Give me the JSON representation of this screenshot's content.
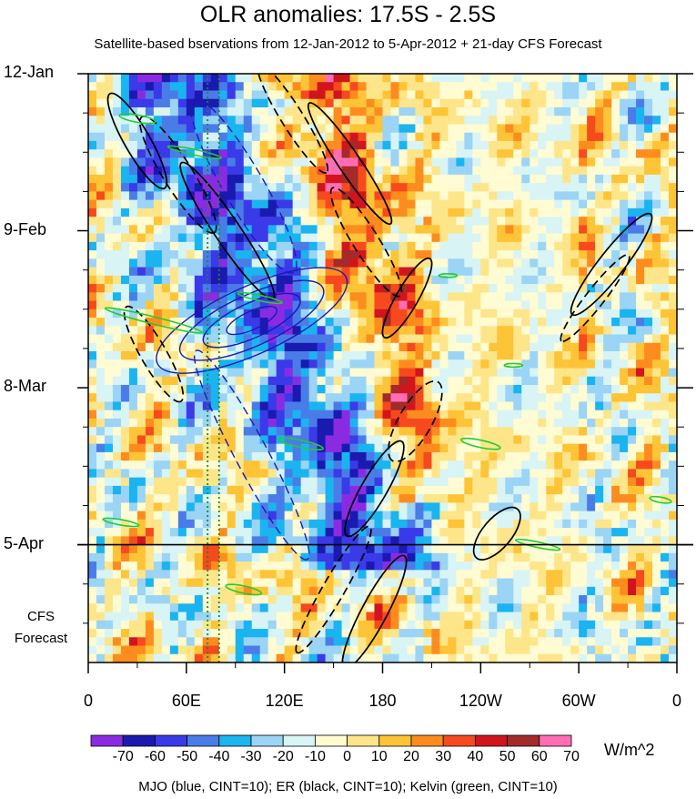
{
  "chart_data": {
    "type": "heatmap",
    "title": "OLR anomalies: 17.5S - 2.5S",
    "subtitle": "Satellite-based bservations from 12-Jan-2012 to 5-Apr-2012 + 21-day CFS Forecast",
    "y_ticks": [
      "12-Jan",
      "9-Feb",
      "8-Mar",
      "5-Apr"
    ],
    "y_tick_days": [
      0,
      28,
      56,
      84
    ],
    "y_max_days": 105,
    "forecast_start_day": 84,
    "forecast_label": [
      "CFS",
      "Forecast"
    ],
    "x_ticks": [
      "0",
      "60E",
      "120E",
      "180",
      "120W",
      "60W",
      "0"
    ],
    "x_tick_lon": [
      0,
      60,
      120,
      180,
      240,
      300,
      360
    ],
    "x_range": [
      0,
      360
    ],
    "reference_lon": [
      73,
      80
    ],
    "colorbar": {
      "levels": [
        "-70",
        "-60",
        "-50",
        "-40",
        "-30",
        "-20",
        "-10",
        "0",
        "10",
        "20",
        "30",
        "40",
        "50",
        "60",
        "70"
      ],
      "colors": [
        "#8a2be2",
        "#1a1ab0",
        "#3a3ae8",
        "#4a7ce8",
        "#1ab4f0",
        "#9bd4f5",
        "#d8f4f5",
        "#fffbd2",
        "#fde58a",
        "#fdc437",
        "#fd8c1e",
        "#f64a1e",
        "#d2141e",
        "#a52a2a",
        "#ff6eb4"
      ],
      "units": "W/m^2"
    },
    "features": {
      "mjo_negative_band": {
        "lon_start": 45,
        "day_start": 0,
        "lon_end": 170,
        "day_end": 80
      },
      "mjo_positive_band": {
        "lon_start": 140,
        "day_start": 0,
        "lon_end": 205,
        "day_end": 70
      }
    },
    "footer": "MJO (blue, CINT=10); ER (black, CINT=10); Kelvin (green, CINT=10)"
  }
}
